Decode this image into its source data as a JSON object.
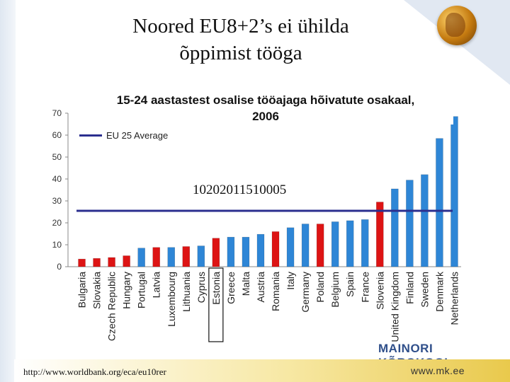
{
  "slide": {
    "title_line1": "Noored EU8+2’s ei ühilda",
    "title_line2": "õppimist tööga",
    "overlay_number": "10202011510005",
    "url": "http://www.worldbank.org/eca/eu10rer",
    "website": "www.mk.ee",
    "school_name": "MAINORI KÕRGKOOL"
  },
  "colors": {
    "blue_bar": "#2e86d6",
    "red_bar": "#dd1414",
    "average_line": "#2b2f8f"
  },
  "chart_data": {
    "type": "bar",
    "title_line1": "15-24 aastastest osalise tööajaga hõivatute osakaal,",
    "title_line2": "2006",
    "categories": [
      "Bulgaria",
      "Slovakia",
      "Czech Republic",
      "Hungary",
      "Portugal",
      "Latvia",
      "Luxembourg",
      "Lithuania",
      "Cyprus",
      "Estonia",
      "Greece",
      "Malta",
      "Austria",
      "Romania",
      "Italy",
      "Germany",
      "Poland",
      "Belgium",
      "Spain",
      "France",
      "Slovenia",
      "United Kingdom",
      "Finland",
      "Sweden",
      "Denmark",
      "Netherlands"
    ],
    "values": [
      3.5,
      3.8,
      4.2,
      5,
      8.5,
      8.8,
      8.8,
      9.2,
      9.5,
      13,
      13.5,
      13.5,
      14.8,
      16,
      17.8,
      19.5,
      19.5,
      20.5,
      21,
      21.5,
      29.5,
      35.5,
      39.5,
      42,
      58.5,
      68.5
    ],
    "highlight": [
      true,
      true,
      true,
      true,
      false,
      true,
      false,
      true,
      false,
      true,
      false,
      false,
      false,
      true,
      false,
      false,
      true,
      false,
      false,
      false,
      true,
      false,
      false,
      false,
      false,
      false
    ],
    "boxed_category": "Estonia",
    "average": {
      "name": "EU 25 Average",
      "value": 25.5
    },
    "ylim": [
      0,
      70
    ],
    "yticks": [
      0,
      10,
      20,
      30,
      40,
      50,
      60,
      70
    ],
    "grid": false,
    "legend_position": "top-left"
  }
}
